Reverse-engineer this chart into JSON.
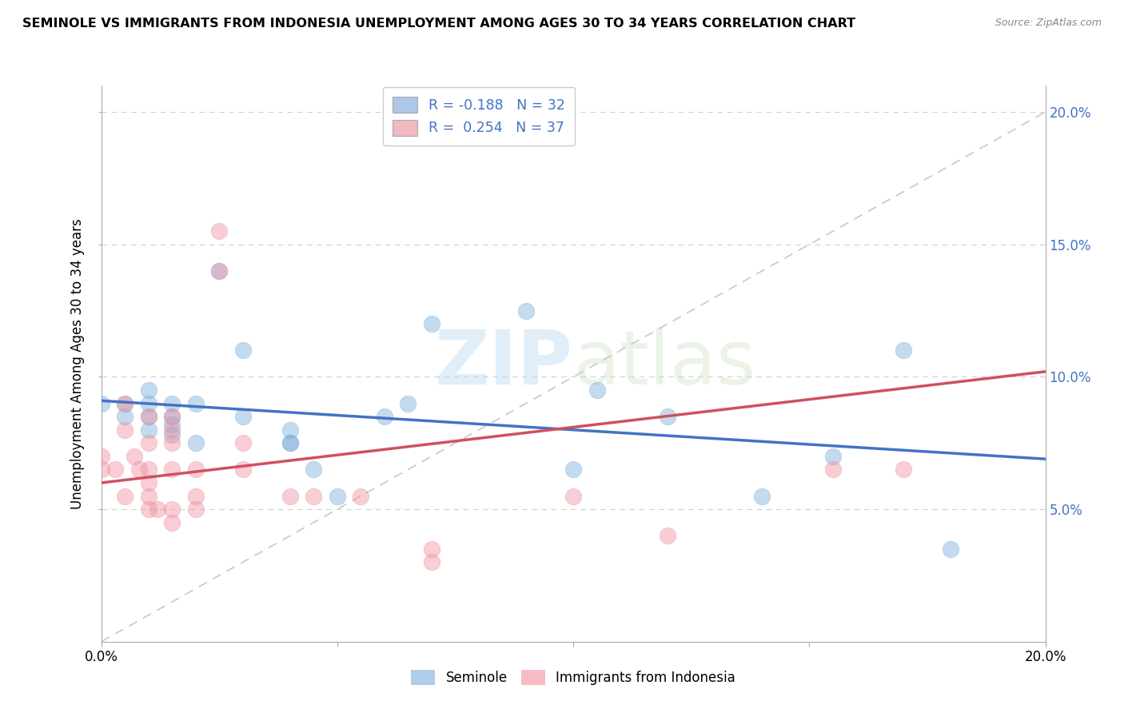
{
  "title": "SEMINOLE VS IMMIGRANTS FROM INDONESIA UNEMPLOYMENT AMONG AGES 30 TO 34 YEARS CORRELATION CHART",
  "source": "Source: ZipAtlas.com",
  "ylabel": "Unemployment Among Ages 30 to 34 years",
  "xlabel": "",
  "xlim": [
    0.0,
    0.2
  ],
  "ylim": [
    0.0,
    0.21
  ],
  "yticks": [
    0.05,
    0.1,
    0.15,
    0.2
  ],
  "ytick_labels": [
    "5.0%",
    "10.0%",
    "15.0%",
    "20.0%"
  ],
  "xticks": [
    0.0,
    0.05,
    0.1,
    0.15,
    0.2
  ],
  "xtick_labels": [
    "0.0%",
    "",
    "",
    "",
    "20.0%"
  ],
  "watermark_zip": "ZIP",
  "watermark_atlas": "atlas",
  "legend_entries": [
    {
      "label": "R = -0.188   N = 32",
      "color": "#aec6e8"
    },
    {
      "label": "R =  0.254   N = 37",
      "color": "#f4b8c1"
    }
  ],
  "legend_labels_bottom": [
    "Seminole",
    "Immigrants from Indonesia"
  ],
  "seminole_color": "#7aaddc",
  "indonesia_color": "#f090a0",
  "seminole_line_color": "#4472c4",
  "indonesia_line_color": "#d05060",
  "seminole_line": [
    [
      0.0,
      0.091
    ],
    [
      0.2,
      0.069
    ]
  ],
  "indonesia_line": [
    [
      0.0,
      0.06
    ],
    [
      0.2,
      0.102
    ]
  ],
  "seminole_points": [
    [
      0.0,
      0.09
    ],
    [
      0.005,
      0.085
    ],
    [
      0.005,
      0.09
    ],
    [
      0.01,
      0.09
    ],
    [
      0.01,
      0.095
    ],
    [
      0.01,
      0.08
    ],
    [
      0.01,
      0.085
    ],
    [
      0.015,
      0.09
    ],
    [
      0.015,
      0.085
    ],
    [
      0.015,
      0.082
    ],
    [
      0.015,
      0.078
    ],
    [
      0.02,
      0.09
    ],
    [
      0.02,
      0.075
    ],
    [
      0.025,
      0.14
    ],
    [
      0.03,
      0.11
    ],
    [
      0.03,
      0.085
    ],
    [
      0.04,
      0.08
    ],
    [
      0.04,
      0.075
    ],
    [
      0.04,
      0.075
    ],
    [
      0.045,
      0.065
    ],
    [
      0.05,
      0.055
    ],
    [
      0.06,
      0.085
    ],
    [
      0.065,
      0.09
    ],
    [
      0.07,
      0.12
    ],
    [
      0.09,
      0.125
    ],
    [
      0.1,
      0.065
    ],
    [
      0.105,
      0.095
    ],
    [
      0.12,
      0.085
    ],
    [
      0.14,
      0.055
    ],
    [
      0.155,
      0.07
    ],
    [
      0.17,
      0.11
    ],
    [
      0.18,
      0.035
    ]
  ],
  "indonesia_points": [
    [
      0.0,
      0.07
    ],
    [
      0.0,
      0.065
    ],
    [
      0.003,
      0.065
    ],
    [
      0.005,
      0.09
    ],
    [
      0.005,
      0.08
    ],
    [
      0.005,
      0.055
    ],
    [
      0.007,
      0.07
    ],
    [
      0.008,
      0.065
    ],
    [
      0.01,
      0.085
    ],
    [
      0.01,
      0.075
    ],
    [
      0.01,
      0.065
    ],
    [
      0.01,
      0.06
    ],
    [
      0.01,
      0.055
    ],
    [
      0.01,
      0.05
    ],
    [
      0.012,
      0.05
    ],
    [
      0.015,
      0.085
    ],
    [
      0.015,
      0.08
    ],
    [
      0.015,
      0.075
    ],
    [
      0.015,
      0.065
    ],
    [
      0.015,
      0.05
    ],
    [
      0.015,
      0.045
    ],
    [
      0.02,
      0.065
    ],
    [
      0.02,
      0.055
    ],
    [
      0.02,
      0.05
    ],
    [
      0.025,
      0.155
    ],
    [
      0.025,
      0.14
    ],
    [
      0.03,
      0.075
    ],
    [
      0.03,
      0.065
    ],
    [
      0.04,
      0.055
    ],
    [
      0.045,
      0.055
    ],
    [
      0.055,
      0.055
    ],
    [
      0.07,
      0.035
    ],
    [
      0.07,
      0.03
    ],
    [
      0.1,
      0.055
    ],
    [
      0.12,
      0.04
    ],
    [
      0.155,
      0.065
    ],
    [
      0.17,
      0.065
    ]
  ]
}
